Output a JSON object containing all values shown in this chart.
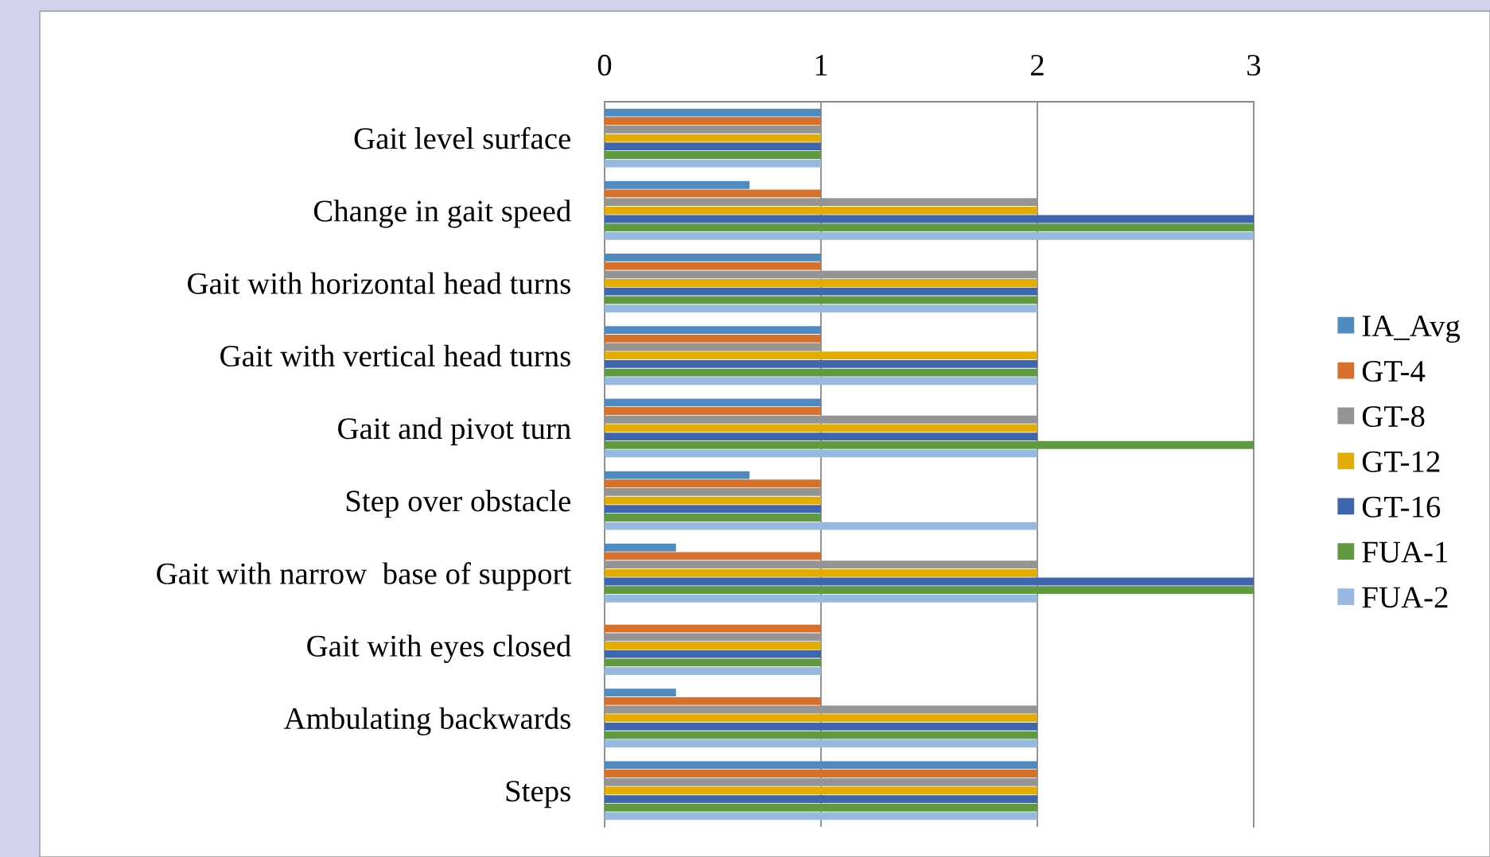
{
  "chart_data": {
    "type": "bar",
    "orientation": "horizontal",
    "categories": [
      "Gait level surface",
      "Change in gait speed",
      "Gait with horizontal head turns",
      "Gait with vertical head turns",
      "Gait and pivot turn",
      "Step over obstacle",
      "Gait with narrow  base of support",
      "Gait with eyes closed",
      "Ambulating backwards",
      "Steps"
    ],
    "series": [
      {
        "name": "IA_Avg",
        "color": "#4f8bc0",
        "values": [
          1,
          0.67,
          1,
          1,
          1,
          0.67,
          0.33,
          0,
          0.33,
          2
        ]
      },
      {
        "name": "GT-4",
        "color": "#d6702b",
        "values": [
          1,
          1,
          1,
          1,
          1,
          1,
          1,
          1,
          1,
          2
        ]
      },
      {
        "name": "GT-8",
        "color": "#949494",
        "values": [
          1,
          2,
          2,
          1,
          2,
          1,
          2,
          1,
          2,
          2
        ]
      },
      {
        "name": "GT-12",
        "color": "#e5ac00",
        "values": [
          1,
          2,
          2,
          2,
          2,
          1,
          2,
          1,
          2,
          2
        ]
      },
      {
        "name": "GT-16",
        "color": "#3e65ad",
        "values": [
          1,
          3,
          2,
          2,
          2,
          1,
          3,
          1,
          2,
          2
        ]
      },
      {
        "name": "FUA-1",
        "color": "#5f9a3e",
        "values": [
          1,
          3,
          2,
          2,
          3,
          1,
          3,
          1,
          2,
          2
        ]
      },
      {
        "name": "FUA-2",
        "color": "#97b9e0",
        "values": [
          1,
          3,
          2,
          2,
          2,
          2,
          2,
          1,
          2,
          2
        ]
      }
    ],
    "xlim": [
      0,
      3
    ],
    "xticks": [
      0,
      1,
      2,
      3
    ],
    "grid": "x",
    "legend": "right"
  }
}
